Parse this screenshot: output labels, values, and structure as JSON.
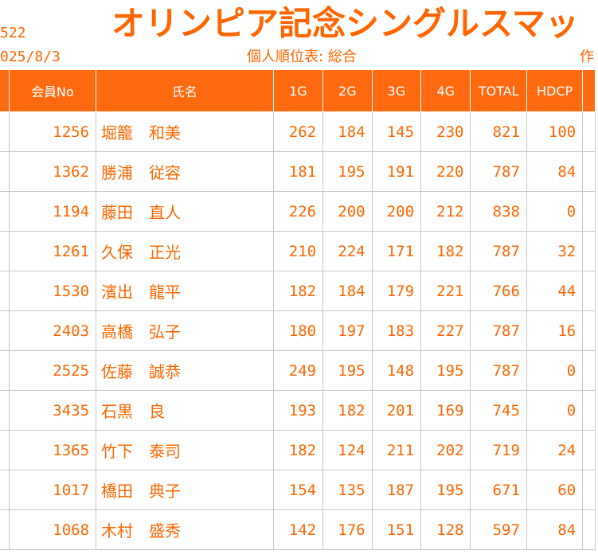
{
  "header": {
    "title": "オリンピア記念シングルスマッ",
    "code_fragment": "522",
    "date_fragment": "025/8/3",
    "subtitle": "個人順位表: 総合",
    "creator_fragment": "作"
  },
  "table": {
    "columns": {
      "member_no": "会員No",
      "name": "氏名",
      "g1": "1G",
      "g2": "2G",
      "g3": "3G",
      "g4": "4G",
      "total": "TOTAL",
      "hdcp": "HDCP"
    },
    "rows": [
      {
        "member_no": "1256",
        "name": "堀籠　和美",
        "g1": "262",
        "g2": "184",
        "g3": "145",
        "g4": "230",
        "total": "821",
        "hdcp": "100"
      },
      {
        "member_no": "1362",
        "name": "勝浦　従容",
        "g1": "181",
        "g2": "195",
        "g3": "191",
        "g4": "220",
        "total": "787",
        "hdcp": "84"
      },
      {
        "member_no": "1194",
        "name": "藤田　直人",
        "g1": "226",
        "g2": "200",
        "g3": "200",
        "g4": "212",
        "total": "838",
        "hdcp": "0"
      },
      {
        "member_no": "1261",
        "name": "久保　正光",
        "g1": "210",
        "g2": "224",
        "g3": "171",
        "g4": "182",
        "total": "787",
        "hdcp": "32"
      },
      {
        "member_no": "1530",
        "name": "濱出　龍平",
        "g1": "182",
        "g2": "184",
        "g3": "179",
        "g4": "221",
        "total": "766",
        "hdcp": "44"
      },
      {
        "member_no": "2403",
        "name": "高橋　弘子",
        "g1": "180",
        "g2": "197",
        "g3": "183",
        "g4": "227",
        "total": "787",
        "hdcp": "16"
      },
      {
        "member_no": "2525",
        "name": "佐藤　誠恭",
        "g1": "249",
        "g2": "195",
        "g3": "148",
        "g4": "195",
        "total": "787",
        "hdcp": "0"
      },
      {
        "member_no": "3435",
        "name": "石黒　良",
        "g1": "193",
        "g2": "182",
        "g3": "201",
        "g4": "169",
        "total": "745",
        "hdcp": "0"
      },
      {
        "member_no": "1365",
        "name": "竹下　泰司",
        "g1": "182",
        "g2": "124",
        "g3": "211",
        "g4": "202",
        "total": "719",
        "hdcp": "24"
      },
      {
        "member_no": "1017",
        "name": "橋田　典子",
        "g1": "154",
        "g2": "135",
        "g3": "187",
        "g4": "195",
        "total": "671",
        "hdcp": "60"
      },
      {
        "member_no": "1068",
        "name": "木村　盛秀",
        "g1": "142",
        "g2": "176",
        "g3": "151",
        "g4": "128",
        "total": "597",
        "hdcp": "84"
      }
    ]
  },
  "colors": {
    "accent": "#ff6600",
    "header_bg": "#ff6a10",
    "grid": "#c8c8c8"
  }
}
